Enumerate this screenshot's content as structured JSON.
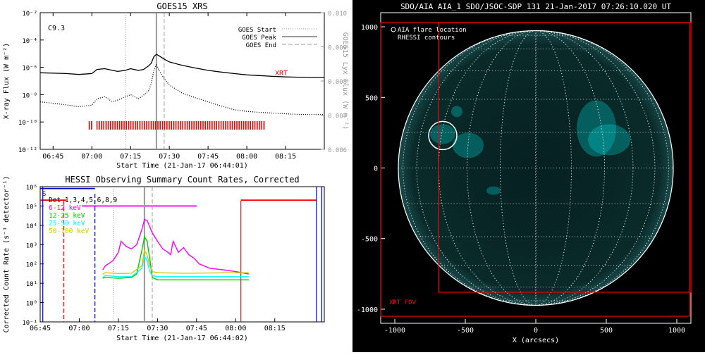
{
  "colors": {
    "red": "#ff0000",
    "magenta": "#ff00ff",
    "green": "#00cc00",
    "cyan": "#00ffff",
    "yellow": "#cccc00",
    "blue": "#0000cc",
    "gray": "#999999",
    "disk": "#00c8c8"
  },
  "chart_data": [
    {
      "id": "goes",
      "type": "line",
      "title": "GOES15 XRS",
      "xlabel": "Start Time (21-Jan-17 06:44:01)",
      "ylabel": "X-ray Flux (W m⁻²)",
      "ylabel_right": "GOES15 Lyx Flux (W m⁻²)",
      "xlim": [
        "06:40",
        "08:30"
      ],
      "ylim": [
        1e-12,
        0.01
      ],
      "y_scale": "log",
      "y_right_lim": [
        0.006,
        0.01
      ],
      "x_ticks": [
        "06:45",
        "07:00",
        "07:15",
        "07:30",
        "07:45",
        "08:00",
        "08:15"
      ],
      "y_ticks": [
        "10⁻¹²",
        "10⁻¹⁰",
        "10⁻⁸",
        "10⁻⁶",
        "10⁻⁴",
        "10⁻²"
      ],
      "y_right_ticks": [
        "0.006",
        "0.007",
        "0.008",
        "0.009",
        "0.010"
      ],
      "flare_class": "C9.3",
      "legend": [
        "GOES Start",
        "GOES Peak",
        "GOES End"
      ],
      "legend_position": "top-right",
      "xrt_label": "XRT",
      "markers": {
        "start": "07:13",
        "peak": "07:25",
        "end": "07:28"
      },
      "xrt_observations": [
        [
          "06:59",
          "07:00"
        ],
        [
          "07:02",
          "08:07"
        ]
      ],
      "series": [
        {
          "style": "solid",
          "x": [
            "06:40",
            "06:50",
            "06:55",
            "07:00",
            "07:02",
            "07:05",
            "07:08",
            "07:10",
            "07:13",
            "07:15",
            "07:18",
            "07:20",
            "07:22",
            "07:23",
            "07:24",
            "07:25",
            "07:26",
            "07:28",
            "07:30",
            "07:35",
            "07:40",
            "07:45",
            "07:50",
            "07:55",
            "08:00",
            "08:05",
            "08:10",
            "08:15",
            "08:20",
            "08:25",
            "08:30"
          ],
          "y": [
            4e-07,
            3.5e-07,
            3e-07,
            3.5e-07,
            7e-07,
            8e-07,
            6e-07,
            5e-07,
            6e-07,
            8e-07,
            6e-07,
            7e-07,
            1.3e-06,
            2e-06,
            6e-06,
            9e-06,
            7e-06,
            4e-06,
            2.5e-06,
            1.4e-06,
            9e-07,
            6e-07,
            4.5e-07,
            3.5e-07,
            2.8e-07,
            2.5e-07,
            2.2e-07,
            2e-07,
            1.9e-07,
            1.8e-07,
            1.8e-07
          ]
        },
        {
          "style": "dotted",
          "x": [
            "06:40",
            "06:50",
            "06:55",
            "07:00",
            "07:02",
            "07:05",
            "07:08",
            "07:10",
            "07:13",
            "07:15",
            "07:18",
            "07:20",
            "07:22",
            "07:23",
            "07:24",
            "07:25",
            "07:26",
            "07:28",
            "07:30",
            "07:35",
            "07:40",
            "07:45",
            "07:50",
            "07:55",
            "08:00",
            "08:05",
            "08:10",
            "08:15",
            "08:20",
            "08:25",
            "08:30"
          ],
          "y": [
            3e-09,
            1.8e-09,
            1.3e-09,
            1.7e-09,
            5e-09,
            7e-09,
            3e-09,
            4e-09,
            7e-09,
            1e-08,
            5e-09,
            9e-09,
            2e-08,
            6e-08,
            6e-07,
            1.5e-06,
            6e-07,
            1.5e-07,
            5e-08,
            1.3e-08,
            6e-09,
            3e-09,
            1.5e-09,
            8e-10,
            6e-10,
            5e-10,
            4.5e-10,
            4e-10,
            3.5e-10,
            3.5e-10,
            3.5e-10
          ]
        }
      ]
    },
    {
      "id": "hessi",
      "type": "line",
      "title": "HESSI Observing Summary Count Rates, Corrected",
      "xlabel": "Start Time (21-Jan-17 06:44:02)",
      "ylabel": "Corrected Count Rate (s⁻¹ detector⁻¹)",
      "xlim": [
        "06:45",
        "08:34"
      ],
      "ylim": [
        0.1,
        1000000.0
      ],
      "y_scale": "log",
      "x_ticks": [
        "06:45",
        "07:00",
        "07:15",
        "07:30",
        "07:45",
        "08:00",
        "08:15"
      ],
      "y_ticks": [
        "10⁻¹",
        "10⁰",
        "10¹",
        "10²",
        "10³",
        "10⁴",
        "10⁵",
        "10⁶"
      ],
      "legend": [
        "Det 1,3,4,5,6,8,9",
        "6-12 keV",
        "12-25 keV",
        "25-50 keV",
        "50-100 keV"
      ],
      "legend_position": "top-left",
      "s_label": "S",
      "markers": {
        "start": "07:13",
        "peak": "07:25",
        "end": "07:28"
      },
      "series": [
        {
          "name": "6-12 keV",
          "x": [
            "07:09",
            "07:10",
            "07:13",
            "07:15",
            "07:16",
            "07:18",
            "07:20",
            "07:22",
            "07:24",
            "07:25",
            "07:26",
            "07:28",
            "07:30",
            "07:32",
            "07:34",
            "07:35",
            "07:36",
            "07:38",
            "07:40",
            "07:42",
            "07:44",
            "07:46",
            "07:50",
            "07:55",
            "08:00",
            "08:05"
          ],
          "y": [
            50,
            80,
            150,
            400,
            1500,
            800,
            600,
            1000,
            6000,
            20000,
            18000,
            4000,
            1500,
            600,
            400,
            300,
            1500,
            400,
            700,
            300,
            200,
            100,
            60,
            50,
            40,
            30
          ]
        },
        {
          "name": "12-25 keV",
          "x": [
            "07:09",
            "07:10",
            "07:15",
            "07:20",
            "07:22",
            "07:24",
            "07:25",
            "07:26",
            "07:27",
            "07:28",
            "07:30",
            "07:35",
            "07:40",
            "07:50",
            "08:00",
            "08:05"
          ],
          "y": [
            18,
            20,
            18,
            20,
            30,
            500,
            2500,
            1500,
            200,
            20,
            15,
            15,
            15,
            15,
            15,
            15
          ]
        },
        {
          "name": "25-50 keV",
          "x": [
            "07:09",
            "07:10",
            "07:15",
            "07:20",
            "07:24",
            "07:25",
            "07:26",
            "07:27",
            "07:28",
            "07:30",
            "07:40",
            "08:00",
            "08:05"
          ],
          "y": [
            20,
            25,
            22,
            22,
            60,
            250,
            150,
            40,
            25,
            22,
            22,
            22,
            22
          ]
        },
        {
          "name": "50-100 keV",
          "x": [
            "07:09",
            "07:10",
            "07:15",
            "07:20",
            "07:24",
            "07:25",
            "07:26",
            "07:27",
            "07:28",
            "07:30",
            "07:40",
            "08:00",
            "08:05"
          ],
          "y": [
            30,
            35,
            32,
            33,
            80,
            500,
            300,
            80,
            40,
            35,
            33,
            35,
            35
          ]
        }
      ]
    },
    {
      "id": "aia",
      "type": "scatter",
      "title": "SDO/AIA AIA_1 SDO/JSOC-SDP 131 21-Jan-2017 07:26:10.020 UT",
      "xlabel": "X (arcsecs)",
      "ylabel": "",
      "xlim": [
        -1100,
        1100
      ],
      "ylim": [
        -1100,
        1100
      ],
      "x_ticks": [
        -1000,
        -500,
        0,
        500,
        1000
      ],
      "y_ticks": [
        -1000,
        -500,
        0,
        500,
        1000
      ],
      "solar_radius": 975,
      "flare_location": [
        -660,
        230
      ],
      "legend": [
        "AIA flare location",
        "RHESSI contours"
      ],
      "legend_position": "top-left",
      "xrt_fov_label": "XRT FOV",
      "xrt_fov": [
        -1100,
        -1050,
        1090,
        1030
      ],
      "xrt_fov_small": [
        -690,
        -880,
        1100,
        1030
      ]
    }
  ]
}
